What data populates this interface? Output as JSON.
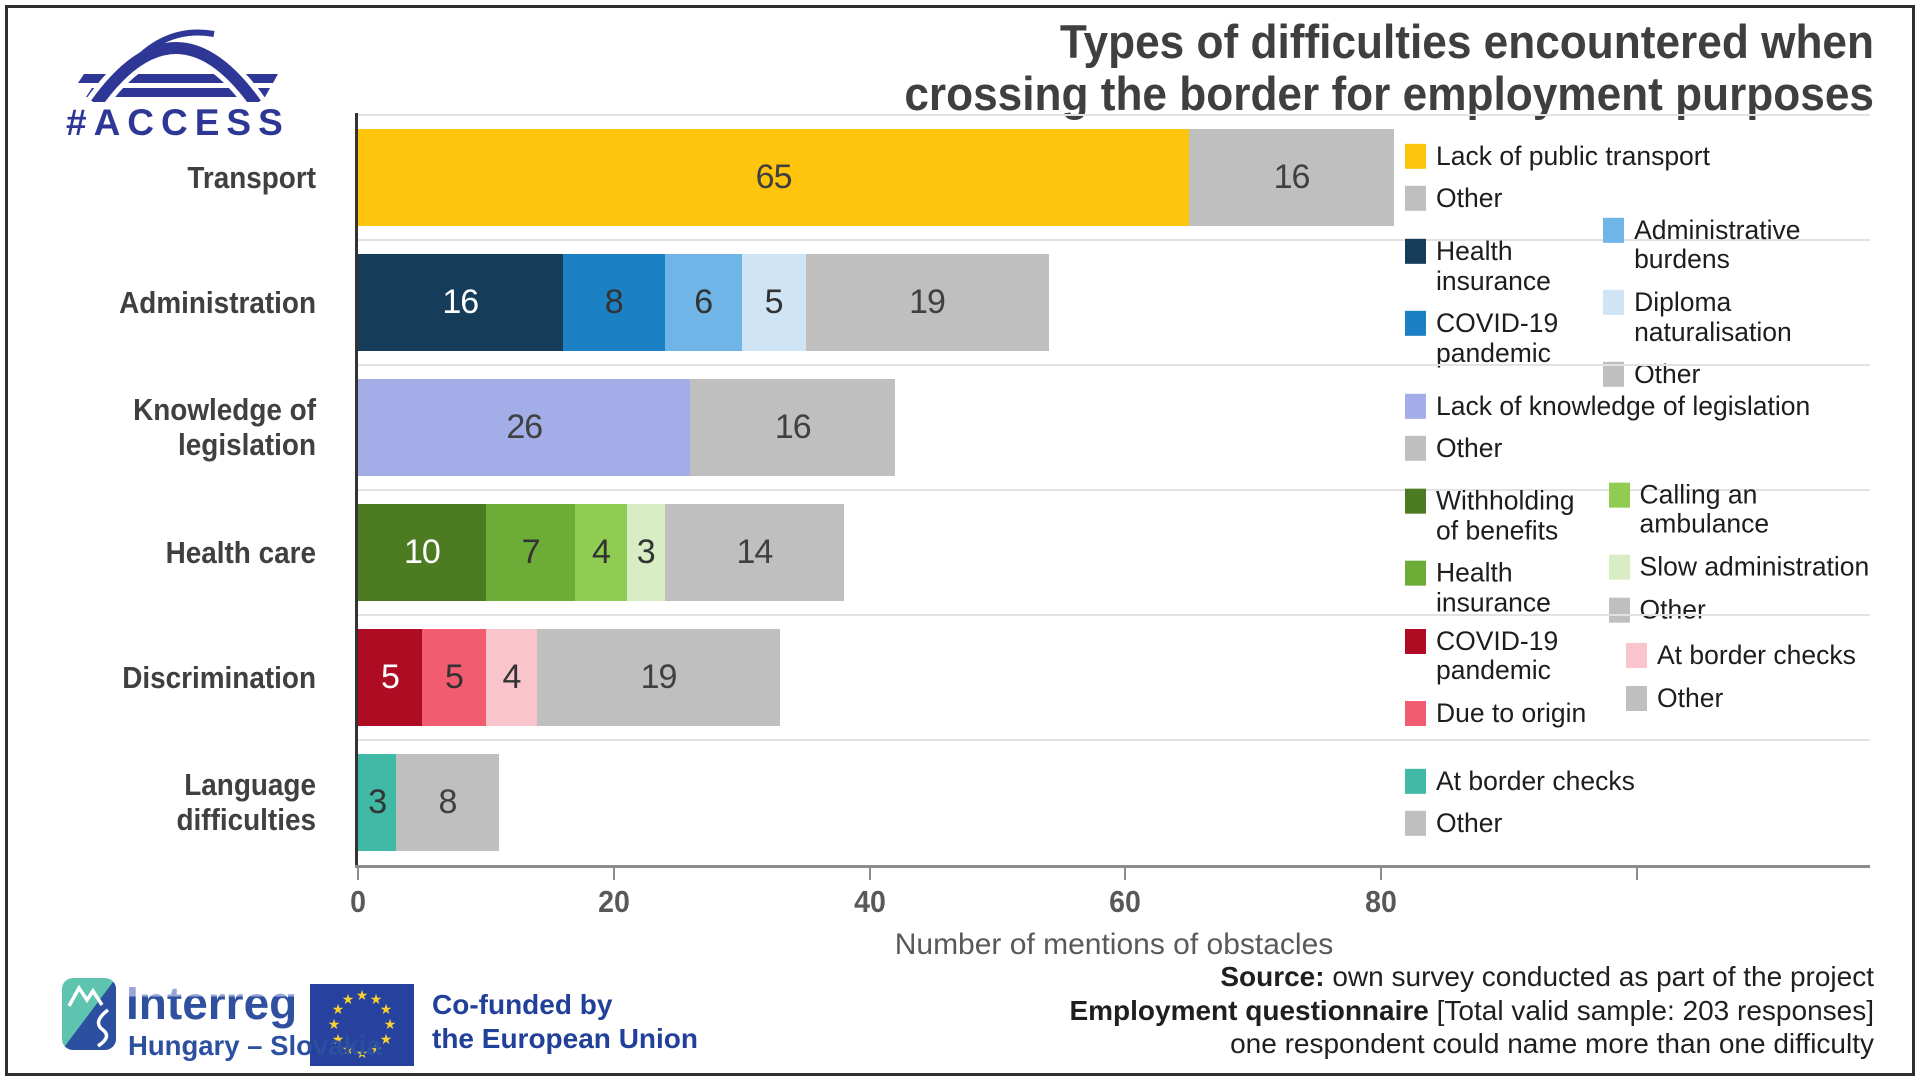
{
  "logo_access": {
    "text": "#ACCESS",
    "color": "#2F3796"
  },
  "title": {
    "line1": "Types of difficulties encountered when",
    "line2": "crossing the border for employment purposes"
  },
  "chart_data": {
    "type": "bar",
    "orientation": "horizontal_stacked",
    "title": "Types of difficulties encountered when crossing the border for employment purposes",
    "xlabel": "Number of mentions of obstacles",
    "x_ticks": [
      0,
      20,
      40,
      60,
      80
    ],
    "x_unlabeled_ticks": [
      100
    ],
    "xlim": [
      0,
      118
    ],
    "grid": "row-separators",
    "legend_position": "right-of-each-row",
    "rows": [
      {
        "category": "Transport",
        "total": 81,
        "segments": [
          {
            "label": "Lack of public transport",
            "value": 65,
            "color": "#FFC40C",
            "value_color": "#404040"
          },
          {
            "label": "Other",
            "value": 16,
            "color": "#BFBFBF",
            "value_color": "#404040"
          }
        ],
        "legend": {
          "columns": [
            [
              {
                "label": "Lack of public transport",
                "color": "#FFC40C"
              },
              {
                "label": "Other",
                "color": "#BFBFBF"
              }
            ]
          ]
        }
      },
      {
        "category": "Administration",
        "total": 54,
        "segments": [
          {
            "label": "Health insurance",
            "value": 16,
            "color": "#153C58",
            "value_color": "#FFFFFF"
          },
          {
            "label": "COVID-19 pandemic",
            "value": 8,
            "color": "#1B80C4",
            "value_color": "#333333"
          },
          {
            "label": "Administrative burdens",
            "value": 6,
            "color": "#6FB5E8",
            "value_color": "#333333"
          },
          {
            "label": "Diploma naturalisation",
            "value": 5,
            "color": "#CFE5F6",
            "value_color": "#333333"
          },
          {
            "label": "Other",
            "value": 19,
            "color": "#BFBFBF",
            "value_color": "#404040"
          }
        ],
        "legend": {
          "columns": [
            [
              {
                "label": "Health insurance",
                "color": "#153C58"
              },
              {
                "label": "COVID-19\npandemic",
                "color": "#1B80C4"
              }
            ],
            [
              {
                "label": "Administrative burdens",
                "color": "#6FB5E8"
              },
              {
                "label": "Diploma\nnaturalisation",
                "color": "#CFE5F6"
              },
              {
                "label": "Other",
                "color": "#BFBFBF"
              }
            ]
          ]
        }
      },
      {
        "category": "Knowledge of\nlegislation",
        "total": 42,
        "segments": [
          {
            "label": "Lack of knowledge of legislation",
            "value": 26,
            "color": "#A3ADE8",
            "value_color": "#404040"
          },
          {
            "label": "Other",
            "value": 16,
            "color": "#BFBFBF",
            "value_color": "#404040"
          }
        ],
        "legend": {
          "columns": [
            [
              {
                "label": "Lack of knowledge of legislation",
                "color": "#A3ADE8"
              },
              {
                "label": "Other",
                "color": "#BFBFBF"
              }
            ]
          ]
        }
      },
      {
        "category": "Health care",
        "total": 38,
        "segments": [
          {
            "label": "Withholding of benefits",
            "value": 10,
            "color": "#4C7B21",
            "value_color": "#FFFFFF"
          },
          {
            "label": "Health insurance",
            "value": 7,
            "color": "#6EAC38",
            "value_color": "#333333"
          },
          {
            "label": "Calling an ambulance",
            "value": 4,
            "color": "#90CC51",
            "value_color": "#333333"
          },
          {
            "label": "Slow administration",
            "value": 3,
            "color": "#D8EDC4",
            "value_color": "#333333"
          },
          {
            "label": "Other",
            "value": 14,
            "color": "#BFBFBF",
            "value_color": "#404040"
          }
        ],
        "legend": {
          "columns": [
            [
              {
                "label": "Withholding\nof benefits",
                "color": "#4C7B21"
              },
              {
                "label": "Health\ninsurance",
                "color": "#6EAC38"
              }
            ],
            [
              {
                "label": "Calling an ambulance",
                "color": "#90CC51"
              },
              {
                "label": "Slow administration",
                "color": "#D8EDC4"
              },
              {
                "label": "Other",
                "color": "#BFBFBF"
              }
            ]
          ]
        }
      },
      {
        "category": "Discrimination",
        "total": 33,
        "segments": [
          {
            "label": "COVID-19 pandemic",
            "value": 5,
            "color": "#AD0C22",
            "value_color": "#FFFFFF"
          },
          {
            "label": "Due to origin",
            "value": 5,
            "color": "#F25C70",
            "value_color": "#333333"
          },
          {
            "label": "At border checks",
            "value": 4,
            "color": "#FAC4CD",
            "value_color": "#333333"
          },
          {
            "label": "Other",
            "value": 19,
            "color": "#BFBFBF",
            "value_color": "#404040"
          }
        ],
        "legend": {
          "columns": [
            [
              {
                "label": "COVID-19\npandemic",
                "color": "#AD0C22"
              },
              {
                "label": "Due to origin",
                "color": "#F25C70"
              }
            ],
            [
              {
                "label": "At border checks",
                "color": "#FAC4CD"
              },
              {
                "label": "Other",
                "color": "#BFBFBF"
              }
            ]
          ]
        }
      },
      {
        "category": "Language\ndifficulties",
        "total": 11,
        "segments": [
          {
            "label": "At border checks",
            "value": 3,
            "color": "#40B9A6",
            "value_color": "#333333"
          },
          {
            "label": "Other",
            "value": 8,
            "color": "#BFBFBF",
            "value_color": "#404040"
          }
        ],
        "legend": {
          "columns": [
            [
              {
                "label": "At border checks",
                "color": "#40B9A6"
              },
              {
                "label": "Other",
                "color": "#BFBFBF"
              }
            ]
          ]
        }
      }
    ]
  },
  "footer": {
    "interreg": {
      "brand": "Interreg",
      "region": "Hungary – Slovakia",
      "teal": "#5EC3AF",
      "blue": "#2D4F9F"
    },
    "eu": {
      "line1": "Co-funded by",
      "line2": "the European Union",
      "flag_blue": "#26419E",
      "star_yellow": "#F8D12E"
    },
    "source": {
      "line1_bold": "Source:",
      "line1_rest": " own survey conducted as part of the project",
      "line2_bold": "Employment questionnaire",
      "line2_rest": " [Total valid sample: 203 responses]",
      "line3": "one respondent could name more than one difficulty"
    }
  }
}
